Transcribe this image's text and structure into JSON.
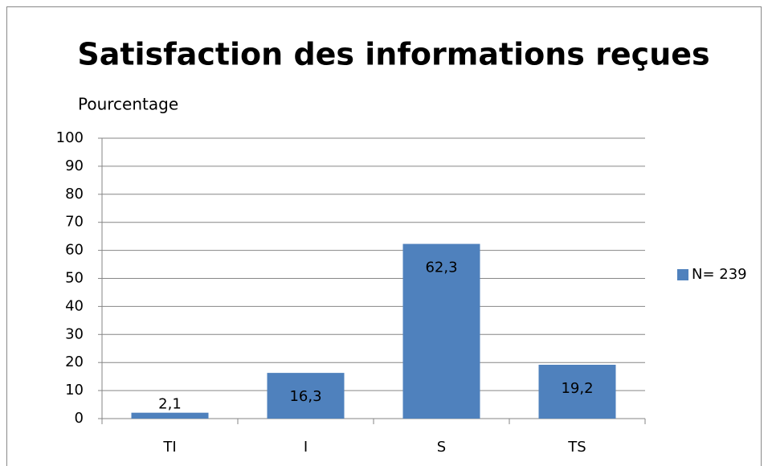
{
  "chart_data": {
    "type": "bar",
    "title": "Satisfaction des informations reçues",
    "y_label": "Pourcentage",
    "categories": [
      "TI",
      "I",
      "S",
      "TS"
    ],
    "series": [
      {
        "name": "N= 239",
        "color": "#4f81bd",
        "values": [
          2.1,
          16.3,
          62.3,
          19.2
        ],
        "value_labels": [
          "2,1",
          "16,3",
          "62,3",
          "19,2"
        ]
      }
    ],
    "ylim": [
      0,
      100
    ],
    "yticks": [
      0,
      10,
      20,
      30,
      40,
      50,
      60,
      70,
      80,
      90,
      100
    ],
    "grid": true,
    "legend": "right"
  }
}
